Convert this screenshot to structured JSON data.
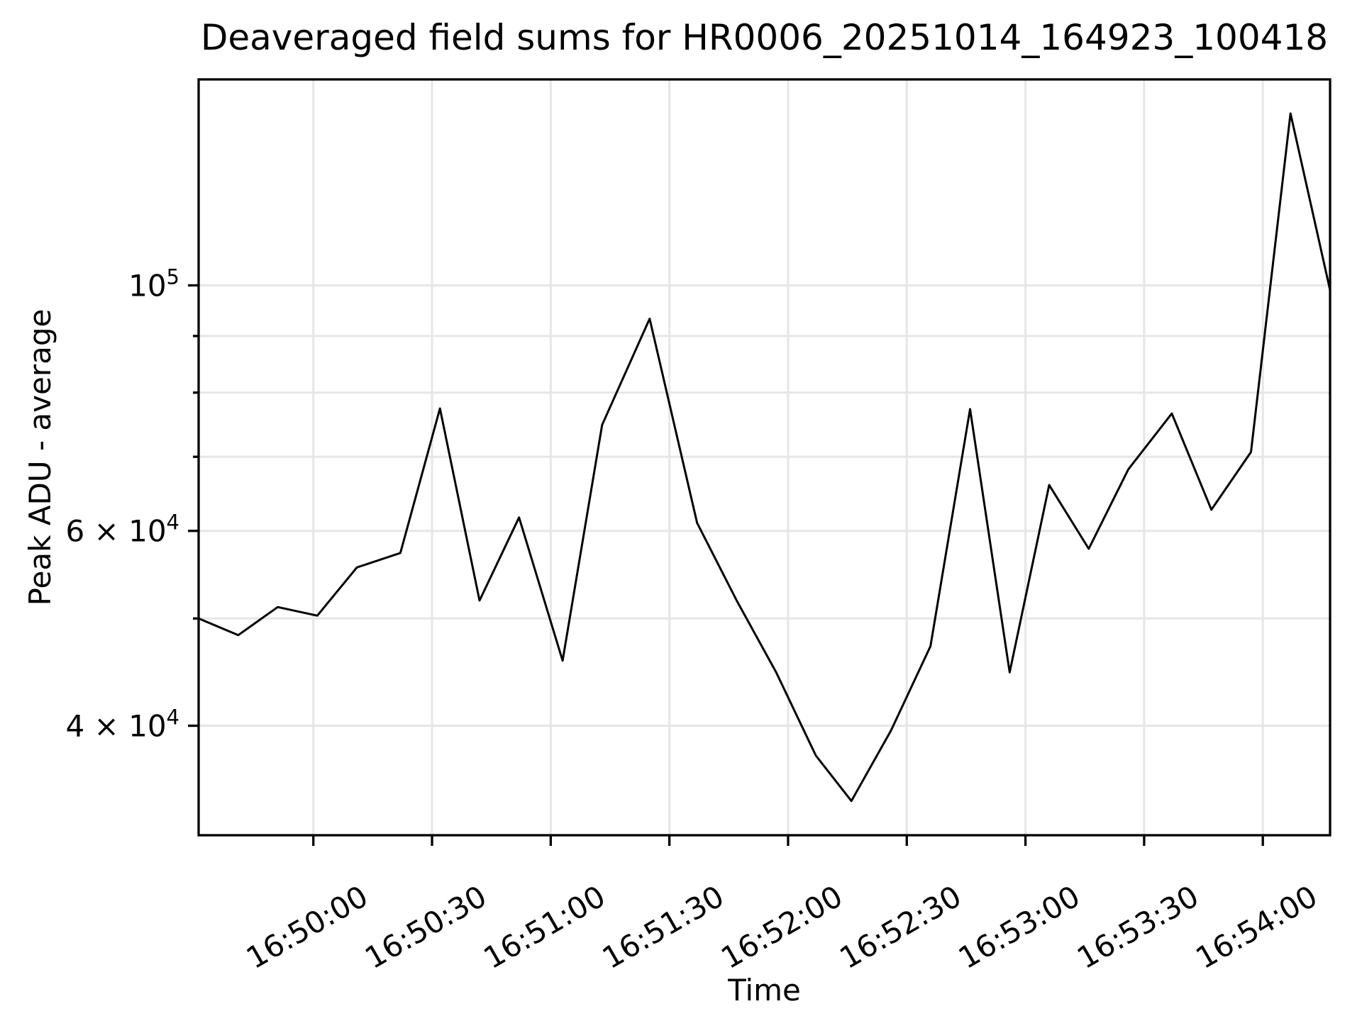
{
  "title": "Deaveraged field sums for HR0006_20251014_164923_100418",
  "chart_data": {
    "type": "line",
    "title": "Deaveraged field sums for HR0006_20251014_164923_100418",
    "xlabel": "Time",
    "ylabel": "Peak ADU - average",
    "yscale": "log",
    "grid": true,
    "legend": "none",
    "line_color": "#000000",
    "grid_color": "#e6e6e6",
    "axis_color": "#000000",
    "x_range": [
      "16:49:31",
      "16:54:17"
    ],
    "y_range": [
      31850,
      153500
    ],
    "x_ticks": [
      "16:50:00",
      "16:50:30",
      "16:51:00",
      "16:51:30",
      "16:52:00",
      "16:52:30",
      "16:53:00",
      "16:53:30",
      "16:54:00"
    ],
    "y_ticks": [
      {
        "value": 100000,
        "base": "10",
        "exp": "5"
      },
      {
        "value": 60000,
        "base": "6 × 10",
        "exp": "4"
      },
      {
        "value": 40000,
        "base": "4 × 10",
        "exp": "4"
      }
    ],
    "y_gridlines": [
      40000,
      50000,
      60000,
      70000,
      80000,
      90000,
      100000
    ],
    "y_minor_ticks": [
      90000,
      80000,
      70000,
      50000
    ],
    "series": [
      {
        "name": "Peak ADU - average",
        "points": [
          {
            "t": "16:49:31",
            "v": 50000
          },
          {
            "t": "16:49:41",
            "v": 48300
          },
          {
            "t": "16:49:51",
            "v": 51200
          },
          {
            "t": "16:50:01",
            "v": 50300
          },
          {
            "t": "16:50:11",
            "v": 55600
          },
          {
            "t": "16:50:22",
            "v": 57300
          },
          {
            "t": "16:50:32",
            "v": 77400
          },
          {
            "t": "16:50:42",
            "v": 51900
          },
          {
            "t": "16:50:52",
            "v": 61700
          },
          {
            "t": "16:51:03",
            "v": 45800
          },
          {
            "t": "16:51:13",
            "v": 74800
          },
          {
            "t": "16:51:25",
            "v": 93300
          },
          {
            "t": "16:51:37",
            "v": 61000
          },
          {
            "t": "16:51:47",
            "v": 51900
          },
          {
            "t": "16:51:57",
            "v": 44700
          },
          {
            "t": "16:52:07",
            "v": 37600
          },
          {
            "t": "16:52:16",
            "v": 34200
          },
          {
            "t": "16:52:26",
            "v": 39600
          },
          {
            "t": "16:52:36",
            "v": 47200
          },
          {
            "t": "16:52:46",
            "v": 77300
          },
          {
            "t": "16:52:56",
            "v": 44700
          },
          {
            "t": "16:53:06",
            "v": 66000
          },
          {
            "t": "16:53:16",
            "v": 57800
          },
          {
            "t": "16:53:26",
            "v": 68200
          },
          {
            "t": "16:53:37",
            "v": 76600
          },
          {
            "t": "16:53:47",
            "v": 62700
          },
          {
            "t": "16:53:57",
            "v": 70700
          },
          {
            "t": "16:54:07",
            "v": 143000
          },
          {
            "t": "16:54:17",
            "v": 99000
          }
        ]
      }
    ]
  }
}
